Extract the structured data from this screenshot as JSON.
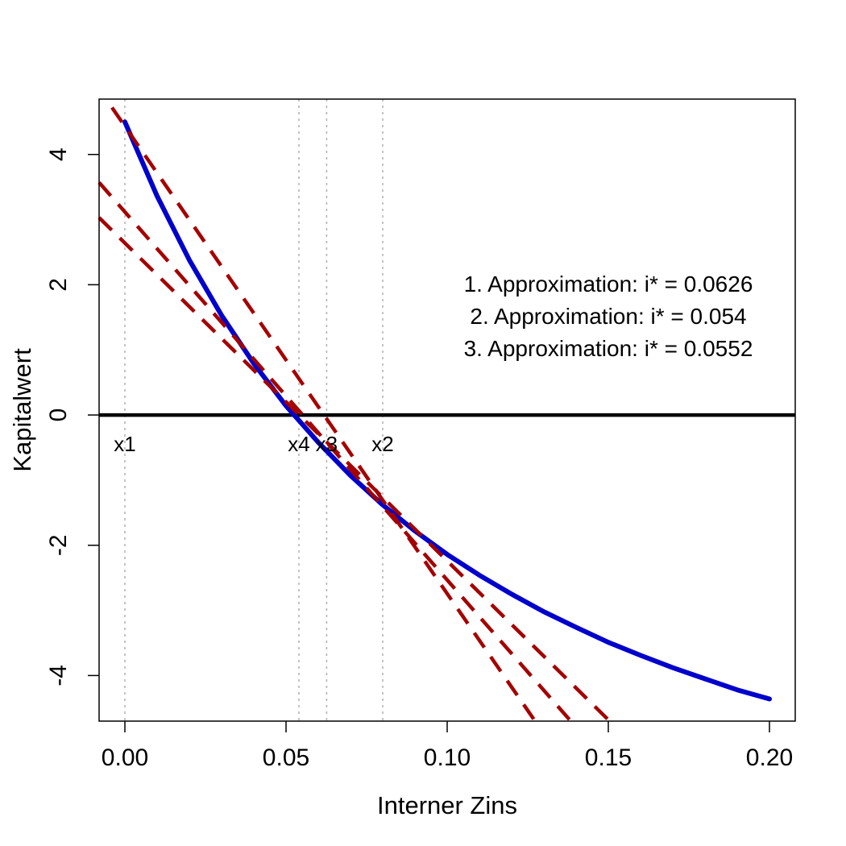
{
  "chart_data": {
    "type": "line",
    "title": "",
    "xlabel": "Interner Zins",
    "ylabel": "Kapitalwert",
    "xlim": [
      -0.008,
      0.208
    ],
    "ylim": [
      -4.7,
      4.85
    ],
    "x_ticks": [
      0.0,
      0.05,
      0.1,
      0.15,
      0.2
    ],
    "x_tick_labels": [
      "0.00",
      "0.05",
      "0.10",
      "0.15",
      "0.20"
    ],
    "y_ticks": [
      -4,
      -2,
      0,
      2,
      4
    ],
    "y_tick_labels": [
      "-4",
      "-2",
      "0",
      "2",
      "4"
    ],
    "grid": false,
    "colors": {
      "curve": "#0000cc",
      "tangents": "#a40000",
      "zero_line": "#000000",
      "guides": "#b0b0b0"
    },
    "curve": {
      "x": [
        0.0,
        0.01,
        0.02,
        0.03,
        0.04,
        0.05,
        0.06,
        0.07,
        0.08,
        0.09,
        0.1,
        0.11,
        0.12,
        0.13,
        0.14,
        0.15,
        0.16,
        0.17,
        0.18,
        0.19,
        0.2
      ],
      "y": [
        4.5,
        3.36,
        2.38,
        1.53,
        0.79,
        0.14,
        -0.42,
        -0.93,
        -1.38,
        -1.78,
        -2.14,
        -2.46,
        -2.75,
        -3.02,
        -3.26,
        -3.49,
        -3.69,
        -3.88,
        -4.05,
        -4.22,
        -4.36
      ]
    },
    "tangents": [
      {
        "x": [
          -0.004,
          0.127
        ],
        "y": [
          4.72,
          -4.68
        ]
      },
      {
        "x": [
          -0.008,
          0.138
        ],
        "y": [
          3.57,
          -4.68
        ]
      },
      {
        "x": [
          -0.008,
          0.15
        ],
        "y": [
          3.03,
          -4.68
        ]
      }
    ],
    "zero_line": 0,
    "vlines": [
      {
        "x": 0.0,
        "label": "x1"
      },
      {
        "x": 0.054,
        "label": "x4"
      },
      {
        "x": 0.0626,
        "label": "x3"
      },
      {
        "x": 0.08,
        "label": "x2"
      }
    ],
    "annotations": [
      "1. Approximation: i* = 0.0626",
      "2. Approximation: i* = 0.054",
      "3. Approximation: i* = 0.0552"
    ]
  }
}
